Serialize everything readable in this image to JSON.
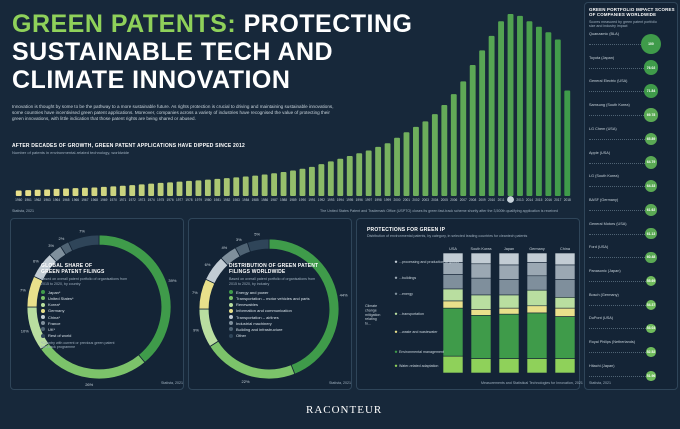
{
  "title": {
    "line1a": "GREEN PATENTS:",
    "line1b": "PROTECTING",
    "line2": "SUSTAINABLE TECH AND",
    "line3": "CLIMATE INNOVATION"
  },
  "intro": "Innovation is thought by some to be the pathway to a more sustainable future. As rights protection is crucial to driving and maintaining sustainable innovations, some countries have incentivised green patent applications. Moreover, companies across a variety of industries have recognised the value of protecting their green innovations, with little indication that those patent rights are being shared or abused.",
  "bar_section": {
    "heading": "AFTER DECADES OF GROWTH, GREEN PATENT APPLICATIONS HAVE DIPPED SINCE 2012",
    "subheading": "Number of patents in environmental-related technology, worldwide",
    "source": "Statista, 2021",
    "annotation": "The United States Patent and Trademark Office (USPTO) closes its green fast-track scheme shortly after the 3,500th qualifying application is received"
  },
  "donut1": {
    "heading1": "GLOBAL SHARE OF",
    "heading2": "GREEN PATENT FILINGS",
    "sub": "Based on overall patent portfolio of organisations from 2015 to 2020, by country",
    "legend": [
      "Japan*",
      "United States*",
      "Korea*",
      "Germany",
      "China*",
      "France",
      "UK*",
      "Rest of world"
    ],
    "note": "*Country with current or previous green patent fast-track programme",
    "labels": [
      "39%",
      "26%",
      "10%",
      "7%",
      "6%",
      "3%",
      "2%",
      "7%"
    ],
    "source": "Statista, 2021"
  },
  "donut2": {
    "heading1": "DISTRIBUTION OF GREEN PATENT",
    "heading2": "FILINGS WORLDWIDE",
    "sub": "Based on overall patent portfolio of organisations from 2015 to 2020, by industry",
    "legend": [
      "Energy and power",
      "Transportation – motor vehicles and parts",
      "Renewables",
      "Information and communication",
      "Transportation – airlines",
      "Industrial machinery",
      "Building and infrastructure",
      "Other"
    ],
    "labels": [
      "44%",
      "22%",
      "9%",
      "7%",
      "6%",
      "4%",
      "3%",
      "5%"
    ],
    "source": "Statista, 2021"
  },
  "protection": {
    "heading": "PROTECTIONS FOR GREEN IP",
    "sub": "Distribution of environmental patents, by category, in selected leading countries for cleantech patents",
    "countries": [
      "USA",
      "South Korea",
      "Japan",
      "Germany",
      "China"
    ],
    "left_label": "Climate change mitigation relating to...",
    "categories": [
      "...processing and production of goods",
      "...buildings",
      "...energy",
      "...transportation",
      "...waste and wastewater",
      "Environmental management",
      "Water-related adaptation"
    ],
    "source": "Measurements and Statistical Technologies for Innovation, 2021"
  },
  "ranking": {
    "heading": "GREEN PORTFOLIO IMPACT SCORES OF COMPANIES WORLDWIDE",
    "sub": "Scores measured by green patent portfolio size and industry impact",
    "source": "Statista, 2021",
    "items": [
      {
        "name": "Quanzamic (BLA)",
        "score": "100"
      },
      {
        "name": "Toyota (Japan)",
        "score": "76.02"
      },
      {
        "name": "General Electric (USA)",
        "score": "71.84"
      },
      {
        "name": "Samsung (South Korea)",
        "score": "69.78"
      },
      {
        "name": "LG Chem (USA)",
        "score": "65.89"
      },
      {
        "name": "Apple (USA)",
        "score": "64.79"
      },
      {
        "name": "LG (South Korea)",
        "score": "64.33"
      },
      {
        "name": "BASF (Germany)",
        "score": "61.62"
      },
      {
        "name": "General Motors (USA)",
        "score": "61.13"
      },
      {
        "name": "Ford (USA)",
        "score": "60.48"
      },
      {
        "name": "Panasonic (Japan)",
        "score": "55.69"
      },
      {
        "name": "Bosch (Germany)",
        "score": "54.37"
      },
      {
        "name": "DuPont (USA)",
        "score": "53.03"
      },
      {
        "name": "Royal Philips (Netherlands)",
        "score": "52.52"
      },
      {
        "name": "Hitachi (Japan)",
        "score": "51.96"
      }
    ]
  },
  "logo": "RACONTEUR",
  "colors": {
    "bg": "#17283a",
    "green": "#8fd15a",
    "deep_green": "#3f9b4a",
    "yellow": "#e9e08b",
    "teal": "#3a6f7f",
    "grey": "#9ba8b3"
  },
  "chart_data": [
    {
      "type": "bar",
      "title": "AFTER DECADES OF GROWTH, GREEN PATENT APPLICATIONS HAVE DIPPED SINCE 2012",
      "ylabel": "Number of patents in environmental-related technology, worldwide",
      "categories": [
        "1960",
        "1961",
        "1962",
        "1963",
        "1964",
        "1965",
        "1966",
        "1967",
        "1968",
        "1969",
        "1970",
        "1971",
        "1972",
        "1973",
        "1974",
        "1975",
        "1976",
        "1977",
        "1978",
        "1979",
        "1980",
        "1981",
        "1982",
        "1983",
        "1984",
        "1985",
        "1986",
        "1987",
        "1988",
        "1989",
        "1990",
        "1991",
        "1992",
        "1993",
        "1994",
        "1995",
        "1996",
        "1997",
        "1998",
        "1999",
        "2000",
        "2001",
        "2002",
        "2003",
        "2004",
        "2005",
        "2006",
        "2007",
        "2008",
        "2009",
        "2010",
        "2011",
        "2012",
        "2013",
        "2014",
        "2015",
        "2016",
        "2017",
        "2018"
      ],
      "values": [
        3,
        3.2,
        3.4,
        3.6,
        3.9,
        4.1,
        4.3,
        4.5,
        4.7,
        5,
        5.3,
        5.6,
        6,
        6.4,
        6.8,
        7.2,
        7.5,
        7.9,
        8.3,
        8.6,
        9,
        9.4,
        9.8,
        10.2,
        10.7,
        11.2,
        11.8,
        12.5,
        13.2,
        14,
        15,
        16,
        17.5,
        19,
        20.5,
        22,
        23.5,
        25,
        27,
        29,
        32,
        35,
        38,
        41,
        45,
        50,
        56,
        63,
        72,
        80,
        88,
        96,
        100,
        99,
        96,
        93,
        90,
        86,
        58
      ],
      "ylim": [
        0,
        100
      ]
    },
    {
      "type": "pie",
      "title": "GLOBAL SHARE OF GREEN PATENT FILINGS",
      "categories": [
        "Japan*",
        "United States*",
        "Korea*",
        "Germany",
        "China*",
        "France",
        "UK*",
        "Rest of world"
      ],
      "values": [
        39,
        26,
        10,
        7,
        6,
        3,
        2,
        7
      ]
    },
    {
      "type": "pie",
      "title": "DISTRIBUTION OF GREEN PATENT FILINGS WORLDWIDE",
      "categories": [
        "Energy and power",
        "Transportation – motor vehicles and parts",
        "Renewables",
        "Information and communication",
        "Transportation – airlines",
        "Industrial machinery",
        "Building and infrastructure",
        "Other"
      ],
      "values": [
        44,
        22,
        9,
        7,
        6,
        4,
        3,
        5
      ]
    },
    {
      "type": "bar",
      "title": "PROTECTIONS FOR GREEN IP",
      "categories": [
        "USA",
        "South Korea",
        "Japan",
        "Germany",
        "China"
      ],
      "series": [
        {
          "name": "...processing and production of goods",
          "values": [
            8,
            9,
            10,
            8,
            10
          ]
        },
        {
          "name": "...buildings",
          "values": [
            10,
            12,
            12,
            11,
            12
          ]
        },
        {
          "name": "...energy",
          "values": [
            12,
            14,
            13,
            12,
            15
          ]
        },
        {
          "name": "...transportation",
          "values": [
            10,
            12,
            11,
            13,
            9
          ]
        },
        {
          "name": "...waste and wastewater",
          "values": [
            6,
            5,
            5,
            6,
            7
          ]
        },
        {
          "name": "Environmental management",
          "values": [
            40,
            36,
            37,
            38,
            35
          ]
        },
        {
          "name": "Water-related adaptation",
          "values": [
            14,
            12,
            12,
            12,
            12
          ]
        }
      ],
      "ylim": [
        0,
        100
      ]
    }
  ]
}
